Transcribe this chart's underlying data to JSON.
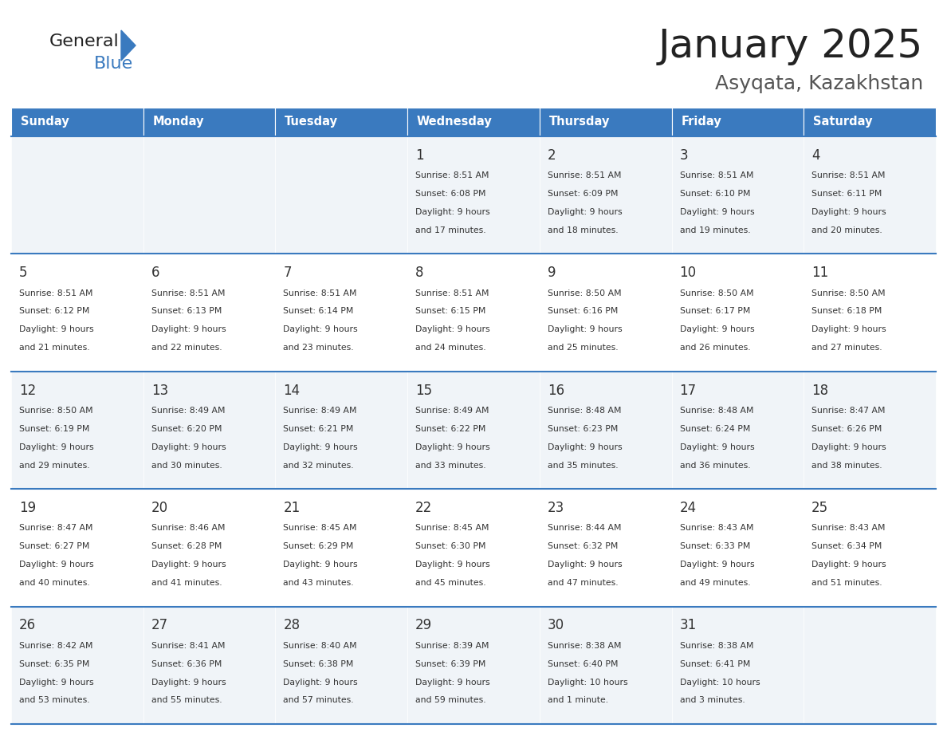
{
  "title": "January 2025",
  "subtitle": "Asyqata, Kazakhstan",
  "header_color": "#3a7abf",
  "header_text_color": "#ffffff",
  "cell_bg_even": "#f0f4f8",
  "cell_bg_odd": "#ffffff",
  "text_color": "#333333",
  "day_names": [
    "Sunday",
    "Monday",
    "Tuesday",
    "Wednesday",
    "Thursday",
    "Friday",
    "Saturday"
  ],
  "days": [
    {
      "day": 1,
      "col": 3,
      "row": 0,
      "sunrise": "8:51 AM",
      "sunset": "6:08 PM",
      "daylight": "9 hours\nand 17 minutes."
    },
    {
      "day": 2,
      "col": 4,
      "row": 0,
      "sunrise": "8:51 AM",
      "sunset": "6:09 PM",
      "daylight": "9 hours\nand 18 minutes."
    },
    {
      "day": 3,
      "col": 5,
      "row": 0,
      "sunrise": "8:51 AM",
      "sunset": "6:10 PM",
      "daylight": "9 hours\nand 19 minutes."
    },
    {
      "day": 4,
      "col": 6,
      "row": 0,
      "sunrise": "8:51 AM",
      "sunset": "6:11 PM",
      "daylight": "9 hours\nand 20 minutes."
    },
    {
      "day": 5,
      "col": 0,
      "row": 1,
      "sunrise": "8:51 AM",
      "sunset": "6:12 PM",
      "daylight": "9 hours\nand 21 minutes."
    },
    {
      "day": 6,
      "col": 1,
      "row": 1,
      "sunrise": "8:51 AM",
      "sunset": "6:13 PM",
      "daylight": "9 hours\nand 22 minutes."
    },
    {
      "day": 7,
      "col": 2,
      "row": 1,
      "sunrise": "8:51 AM",
      "sunset": "6:14 PM",
      "daylight": "9 hours\nand 23 minutes."
    },
    {
      "day": 8,
      "col": 3,
      "row": 1,
      "sunrise": "8:51 AM",
      "sunset": "6:15 PM",
      "daylight": "9 hours\nand 24 minutes."
    },
    {
      "day": 9,
      "col": 4,
      "row": 1,
      "sunrise": "8:50 AM",
      "sunset": "6:16 PM",
      "daylight": "9 hours\nand 25 minutes."
    },
    {
      "day": 10,
      "col": 5,
      "row": 1,
      "sunrise": "8:50 AM",
      "sunset": "6:17 PM",
      "daylight": "9 hours\nand 26 minutes."
    },
    {
      "day": 11,
      "col": 6,
      "row": 1,
      "sunrise": "8:50 AM",
      "sunset": "6:18 PM",
      "daylight": "9 hours\nand 27 minutes."
    },
    {
      "day": 12,
      "col": 0,
      "row": 2,
      "sunrise": "8:50 AM",
      "sunset": "6:19 PM",
      "daylight": "9 hours\nand 29 minutes."
    },
    {
      "day": 13,
      "col": 1,
      "row": 2,
      "sunrise": "8:49 AM",
      "sunset": "6:20 PM",
      "daylight": "9 hours\nand 30 minutes."
    },
    {
      "day": 14,
      "col": 2,
      "row": 2,
      "sunrise": "8:49 AM",
      "sunset": "6:21 PM",
      "daylight": "9 hours\nand 32 minutes."
    },
    {
      "day": 15,
      "col": 3,
      "row": 2,
      "sunrise": "8:49 AM",
      "sunset": "6:22 PM",
      "daylight": "9 hours\nand 33 minutes."
    },
    {
      "day": 16,
      "col": 4,
      "row": 2,
      "sunrise": "8:48 AM",
      "sunset": "6:23 PM",
      "daylight": "9 hours\nand 35 minutes."
    },
    {
      "day": 17,
      "col": 5,
      "row": 2,
      "sunrise": "8:48 AM",
      "sunset": "6:24 PM",
      "daylight": "9 hours\nand 36 minutes."
    },
    {
      "day": 18,
      "col": 6,
      "row": 2,
      "sunrise": "8:47 AM",
      "sunset": "6:26 PM",
      "daylight": "9 hours\nand 38 minutes."
    },
    {
      "day": 19,
      "col": 0,
      "row": 3,
      "sunrise": "8:47 AM",
      "sunset": "6:27 PM",
      "daylight": "9 hours\nand 40 minutes."
    },
    {
      "day": 20,
      "col": 1,
      "row": 3,
      "sunrise": "8:46 AM",
      "sunset": "6:28 PM",
      "daylight": "9 hours\nand 41 minutes."
    },
    {
      "day": 21,
      "col": 2,
      "row": 3,
      "sunrise": "8:45 AM",
      "sunset": "6:29 PM",
      "daylight": "9 hours\nand 43 minutes."
    },
    {
      "day": 22,
      "col": 3,
      "row": 3,
      "sunrise": "8:45 AM",
      "sunset": "6:30 PM",
      "daylight": "9 hours\nand 45 minutes."
    },
    {
      "day": 23,
      "col": 4,
      "row": 3,
      "sunrise": "8:44 AM",
      "sunset": "6:32 PM",
      "daylight": "9 hours\nand 47 minutes."
    },
    {
      "day": 24,
      "col": 5,
      "row": 3,
      "sunrise": "8:43 AM",
      "sunset": "6:33 PM",
      "daylight": "9 hours\nand 49 minutes."
    },
    {
      "day": 25,
      "col": 6,
      "row": 3,
      "sunrise": "8:43 AM",
      "sunset": "6:34 PM",
      "daylight": "9 hours\nand 51 minutes."
    },
    {
      "day": 26,
      "col": 0,
      "row": 4,
      "sunrise": "8:42 AM",
      "sunset": "6:35 PM",
      "daylight": "9 hours\nand 53 minutes."
    },
    {
      "day": 27,
      "col": 1,
      "row": 4,
      "sunrise": "8:41 AM",
      "sunset": "6:36 PM",
      "daylight": "9 hours\nand 55 minutes."
    },
    {
      "day": 28,
      "col": 2,
      "row": 4,
      "sunrise": "8:40 AM",
      "sunset": "6:38 PM",
      "daylight": "9 hours\nand 57 minutes."
    },
    {
      "day": 29,
      "col": 3,
      "row": 4,
      "sunrise": "8:39 AM",
      "sunset": "6:39 PM",
      "daylight": "9 hours\nand 59 minutes."
    },
    {
      "day": 30,
      "col": 4,
      "row": 4,
      "sunrise": "8:38 AM",
      "sunset": "6:40 PM",
      "daylight": "10 hours\nand 1 minute."
    },
    {
      "day": 31,
      "col": 5,
      "row": 4,
      "sunrise": "8:38 AM",
      "sunset": "6:41 PM",
      "daylight": "10 hours\nand 3 minutes."
    }
  ]
}
